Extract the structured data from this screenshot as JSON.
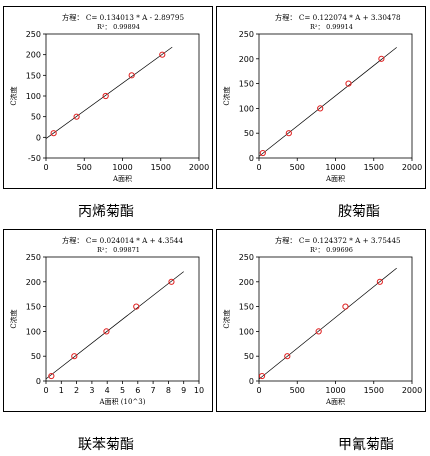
{
  "chart_data": [
    {
      "type": "scatter",
      "title": "方程： C= 0.134013 * A - 2.89795",
      "subtitle": "R²： 0.99894",
      "caption": "丙烯菊酯",
      "xlabel": "A面积",
      "ylabel": "C浓度",
      "xlim": [
        0,
        2000
      ],
      "ylim": [
        -50,
        250
      ],
      "xticks": [
        "0",
        "500",
        "1000",
        "1500",
        "2000"
      ],
      "yticks": [
        "-50",
        "0",
        "50",
        "100",
        "150",
        "200",
        "250"
      ],
      "fit": {
        "slope": 0.134013,
        "intercept": -2.89795,
        "x_range": [
          0,
          1650
        ]
      },
      "x": [
        100,
        400,
        780,
        1120,
        1520
      ],
      "y": [
        10,
        50,
        100,
        150,
        200
      ],
      "grid": false
    },
    {
      "type": "scatter",
      "title": "方程： C= 0.122074 * A + 3.30478",
      "subtitle": "R²： 0.99914",
      "caption": "胺菊酯",
      "xlabel": "A面积",
      "ylabel": "C浓度",
      "xlim": [
        0,
        2000
      ],
      "ylim": [
        0,
        250
      ],
      "xticks": [
        "0",
        "500",
        "1000",
        "1500",
        "2000"
      ],
      "yticks": [
        "0",
        "50",
        "100",
        "150",
        "200",
        "250"
      ],
      "fit": {
        "slope": 0.122074,
        "intercept": 3.30478,
        "x_range": [
          0,
          1800
        ]
      },
      "x": [
        50,
        390,
        800,
        1170,
        1600
      ],
      "y": [
        10,
        50,
        100,
        150,
        200
      ],
      "grid": false
    },
    {
      "type": "scatter",
      "title": "方程： C= 0.024014 * A + 4.3544",
      "subtitle": "R²： 0.99871",
      "caption": "联苯菊酯",
      "xlabel": "A面积 (10^3)",
      "ylabel": "C浓度",
      "xlim": [
        0,
        10
      ],
      "ylim": [
        0,
        250
      ],
      "xticks": [
        "0",
        "1",
        "2",
        "3",
        "4",
        "5",
        "6",
        "7",
        "8",
        "9",
        "10"
      ],
      "yticks": [
        "0",
        "50",
        "100",
        "150",
        "200",
        "250"
      ],
      "fit": {
        "slope": 24.014,
        "intercept": 4.3544,
        "x_range": [
          0,
          9
        ]
      },
      "x": [
        0.35,
        1.85,
        3.95,
        5.9,
        8.2
      ],
      "y": [
        10,
        50,
        100,
        150,
        200
      ],
      "grid": false
    },
    {
      "type": "scatter",
      "title": "方程： C= 0.124372 * A + 3.75445",
      "subtitle": "R²： 0.99696",
      "caption": "甲氰菊酯",
      "xlabel": "A面积",
      "ylabel": "C浓度",
      "xlim": [
        0,
        2000
      ],
      "ylim": [
        0,
        250
      ],
      "xticks": [
        "0",
        "500",
        "1000",
        "1500",
        "2000"
      ],
      "yticks": [
        "0",
        "50",
        "100",
        "150",
        "200",
        "250"
      ],
      "fit": {
        "slope": 0.124372,
        "intercept": 3.75445,
        "x_range": [
          0,
          1800
        ]
      },
      "x": [
        40,
        370,
        780,
        1130,
        1580
      ],
      "y": [
        10,
        50,
        100,
        150,
        200
      ],
      "grid": false
    }
  ]
}
